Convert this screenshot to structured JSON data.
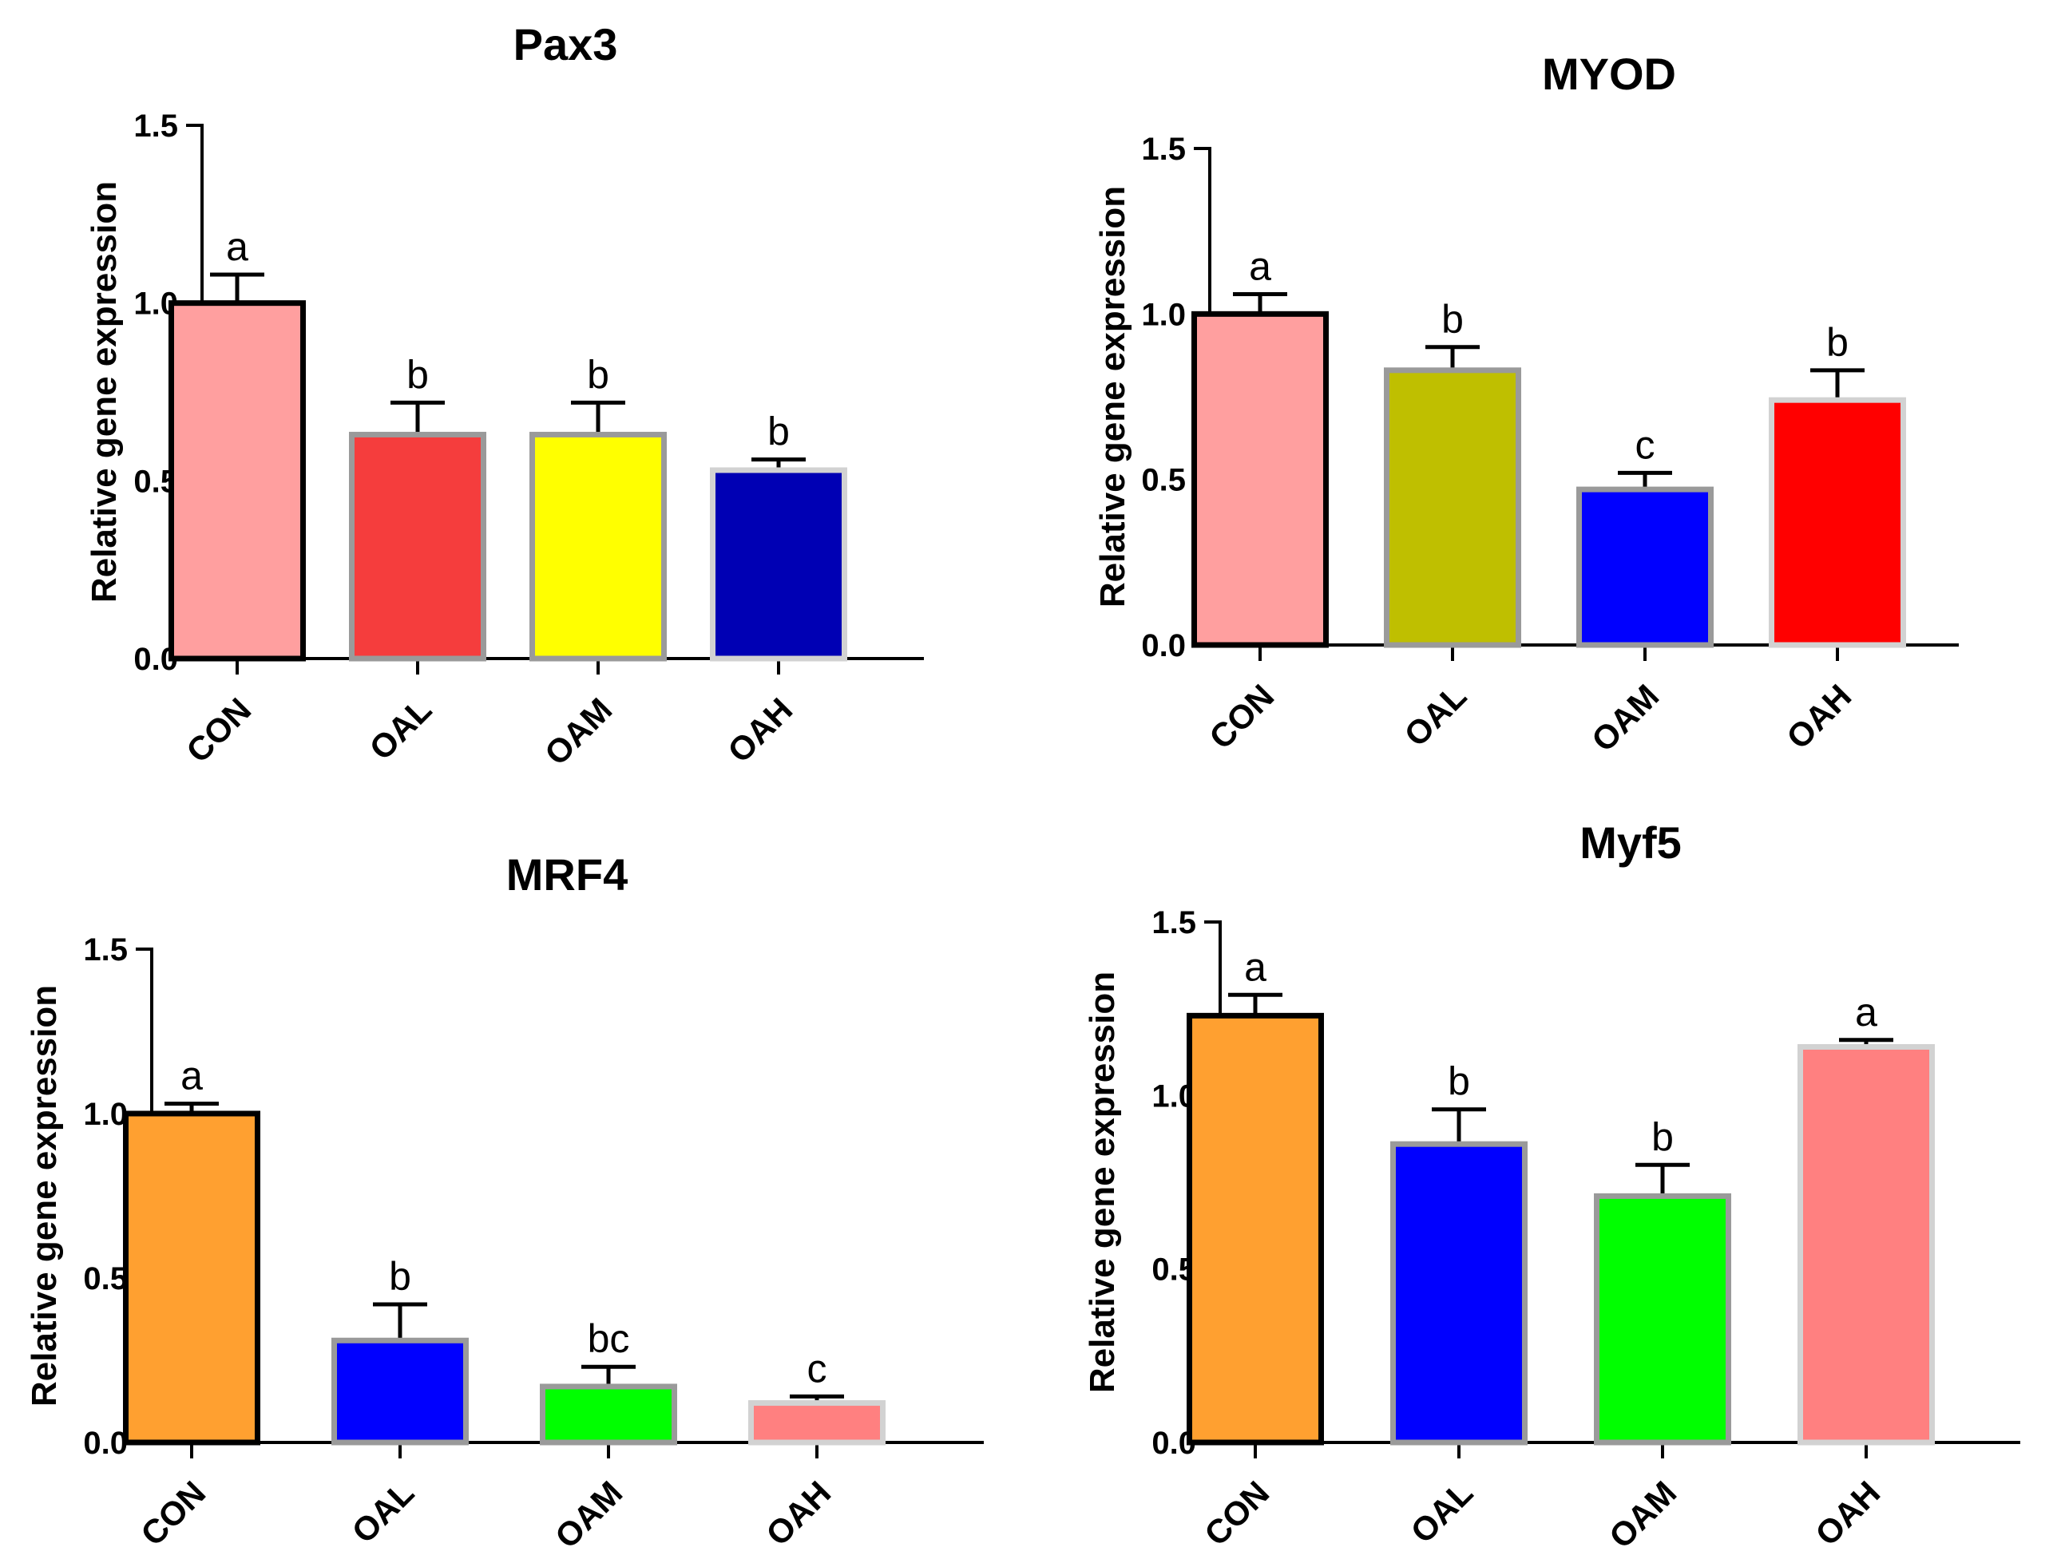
{
  "colors": {
    "axis": "#000000",
    "error_bar": "#000000"
  },
  "chart_data": [
    {
      "type": "bar",
      "title": "Pax3",
      "xlabel": "",
      "ylabel": "Relative gene expression",
      "ylim": [
        0,
        1.5
      ],
      "yticks": [
        "0.0",
        "0.5",
        "1.0",
        "1.5"
      ],
      "categories": [
        "CON",
        "OAL",
        "OAM",
        "OAH"
      ],
      "values": [
        1.0,
        0.63,
        0.63,
        0.53
      ],
      "errors": [
        0.08,
        0.09,
        0.09,
        0.03
      ],
      "significance": [
        "a",
        "b",
        "b",
        "b"
      ],
      "fill_colors": [
        "#ff9f9f",
        "#f53d3d",
        "#ffff00",
        "#0000b4"
      ],
      "border_colors": [
        "#000000",
        "#9a9a9a",
        "#9a9a9a",
        "#d2d2d2"
      ]
    },
    {
      "type": "bar",
      "title": "MYOD",
      "xlabel": "",
      "ylabel": "Relative gene expression",
      "ylim": [
        0,
        1.5
      ],
      "yticks": [
        "0.0",
        "0.5",
        "1.0",
        "1.5"
      ],
      "categories": [
        "CON",
        "OAL",
        "OAM",
        "OAH"
      ],
      "values": [
        1.0,
        0.83,
        0.47,
        0.74
      ],
      "errors": [
        0.06,
        0.07,
        0.05,
        0.09
      ],
      "significance": [
        "a",
        "b",
        "c",
        "b"
      ],
      "fill_colors": [
        "#ff9f9f",
        "#bfbf00",
        "#0000ff",
        "#ff0000"
      ],
      "border_colors": [
        "#000000",
        "#9a9a9a",
        "#9a9a9a",
        "#d2d2d2"
      ]
    },
    {
      "type": "bar",
      "title": "MRF4",
      "xlabel": "",
      "ylabel": "Relative gene expression",
      "ylim": [
        0,
        1.5
      ],
      "yticks": [
        "0.0",
        "0.5",
        "1.0",
        "1.5"
      ],
      "categories": [
        "CON",
        "OAL",
        "OAM",
        "OAH"
      ],
      "values": [
        1.0,
        0.31,
        0.17,
        0.12
      ],
      "errors": [
        0.03,
        0.11,
        0.06,
        0.02
      ],
      "significance": [
        "a",
        "b",
        "bc",
        "c"
      ],
      "fill_colors": [
        "#ffa030",
        "#0000ff",
        "#00ff00",
        "#ff8080"
      ],
      "border_colors": [
        "#000000",
        "#9a9a9a",
        "#9a9a9a",
        "#d2d2d2"
      ]
    },
    {
      "type": "bar",
      "title": "Myf5",
      "xlabel": "",
      "ylabel": "Relative gene expression",
      "ylim": [
        0,
        1.5
      ],
      "yticks": [
        "0.0",
        "0.5",
        "1.0",
        "1.5"
      ],
      "categories": [
        "CON",
        "OAL",
        "OAM",
        "OAH"
      ],
      "values": [
        1.23,
        0.86,
        0.71,
        1.14
      ],
      "errors": [
        0.06,
        0.1,
        0.09,
        0.02
      ],
      "significance": [
        "a",
        "b",
        "b",
        "a"
      ],
      "fill_colors": [
        "#ffa030",
        "#0000ff",
        "#00ff00",
        "#ff8080"
      ],
      "border_colors": [
        "#000000",
        "#9a9a9a",
        "#9a9a9a",
        "#d2d2d2"
      ]
    }
  ]
}
